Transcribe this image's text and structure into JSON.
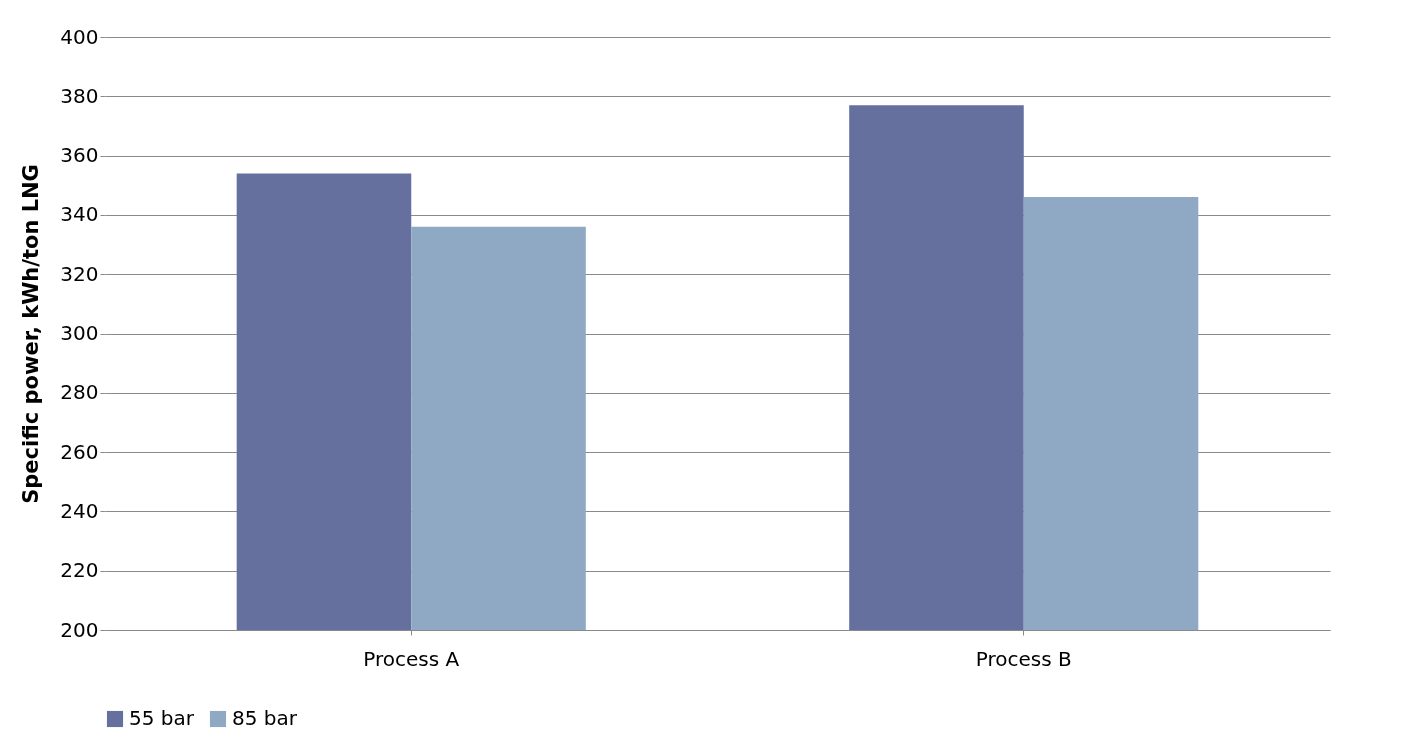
{
  "chart_data": {
    "type": "bar",
    "ylabel": "Specific power, kWh/ton LNG",
    "categories": [
      "Process A",
      "Process B"
    ],
    "series": [
      {
        "name": "55 bar",
        "color": "#65709e",
        "values": [
          354,
          377
        ]
      },
      {
        "name": "85 bar",
        "color": "#8fa9c4",
        "values": [
          336,
          346
        ]
      }
    ],
    "ylim": [
      200,
      400
    ],
    "yticks": [
      200,
      220,
      240,
      260,
      280,
      300,
      320,
      340,
      360,
      380,
      400
    ],
    "grid": "y",
    "legend": "bottom"
  }
}
